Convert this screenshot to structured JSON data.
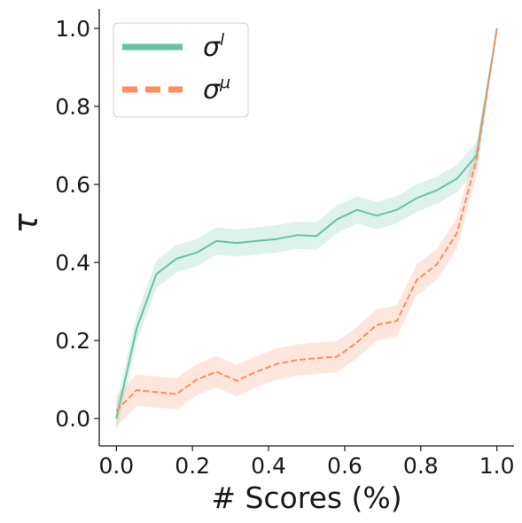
{
  "chart_data": {
    "type": "line",
    "xlabel": "# Scores (%)",
    "ylabel": "τ",
    "xlim": [
      -0.045,
      1.045
    ],
    "ylim": [
      -0.07,
      1.05
    ],
    "xticks": [
      "0.0",
      "0.2",
      "0.4",
      "0.6",
      "0.8",
      "1.0"
    ],
    "yticks": [
      "0.0",
      "0.2",
      "0.4",
      "0.6",
      "0.8",
      "1.0"
    ],
    "grid": false,
    "legend_position": "top-left",
    "series": [
      {
        "name": "σ^l",
        "name_base": "σ",
        "name_sup": "l",
        "color": "#66c2a5",
        "dash": "solid",
        "x": [
          0.0,
          0.053,
          0.105,
          0.158,
          0.211,
          0.263,
          0.316,
          0.368,
          0.421,
          0.474,
          0.526,
          0.579,
          0.632,
          0.684,
          0.737,
          0.789,
          0.842,
          0.895,
          0.947,
          1.0
        ],
        "values": [
          0.0,
          0.23,
          0.37,
          0.41,
          0.425,
          0.455,
          0.45,
          0.455,
          0.46,
          0.47,
          0.468,
          0.51,
          0.535,
          0.52,
          0.535,
          0.565,
          0.585,
          0.615,
          0.675,
          1.0
        ],
        "band": 0.035
      },
      {
        "name": "σ^μ",
        "name_base": "σ",
        "name_sup": "μ",
        "color": "#fc8d62",
        "dash": "dashed",
        "x": [
          0.0,
          0.053,
          0.105,
          0.158,
          0.211,
          0.263,
          0.316,
          0.368,
          0.421,
          0.474,
          0.526,
          0.579,
          0.632,
          0.684,
          0.737,
          0.789,
          0.842,
          0.895,
          0.947,
          1.0
        ],
        "values": [
          0.02,
          0.073,
          0.068,
          0.063,
          0.1,
          0.12,
          0.097,
          0.12,
          0.14,
          0.15,
          0.155,
          0.158,
          0.195,
          0.24,
          0.25,
          0.355,
          0.395,
          0.475,
          0.665,
          1.0
        ],
        "band": 0.04
      }
    ]
  }
}
